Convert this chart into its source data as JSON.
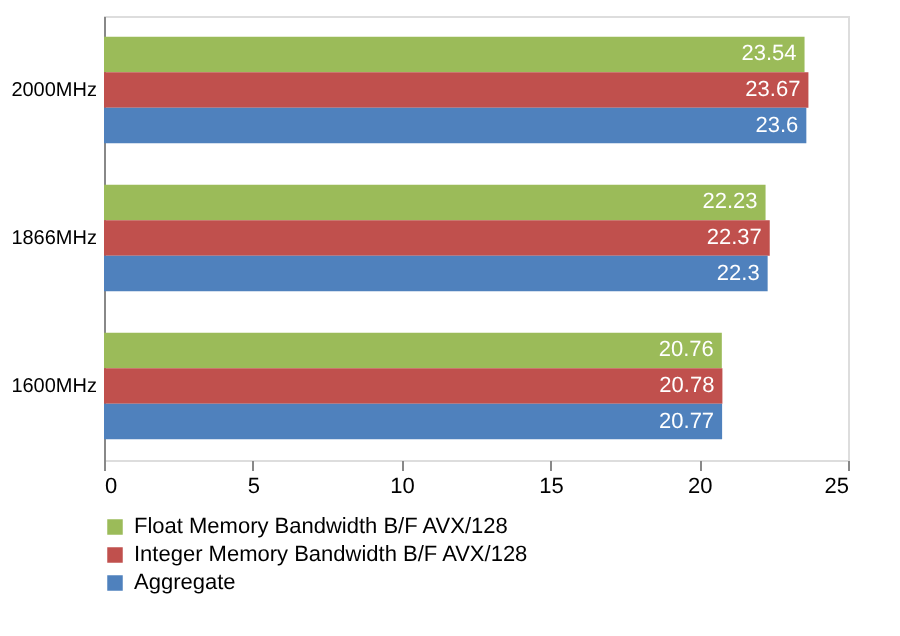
{
  "chart_data": {
    "type": "bar",
    "orientation": "horizontal",
    "categories": [
      "2000MHz",
      "1866MHz",
      "1600MHz"
    ],
    "series": [
      {
        "name": "Float Memory Bandwidth B/F AVX/128",
        "color": "#9bbb59",
        "values": [
          23.54,
          22.23,
          20.76
        ]
      },
      {
        "name": "Integer Memory Bandwidth B/F AVX/128",
        "color": "#c0504d",
        "values": [
          23.67,
          22.37,
          20.78
        ]
      },
      {
        "name": "Aggregate",
        "color": "#4f81bd",
        "values": [
          23.6,
          22.3,
          20.77
        ]
      }
    ],
    "xlim": [
      0,
      25
    ],
    "xticks": [
      0,
      5,
      10,
      15,
      20,
      25
    ],
    "data_labels": true,
    "grid": false,
    "legend": "bottom"
  }
}
